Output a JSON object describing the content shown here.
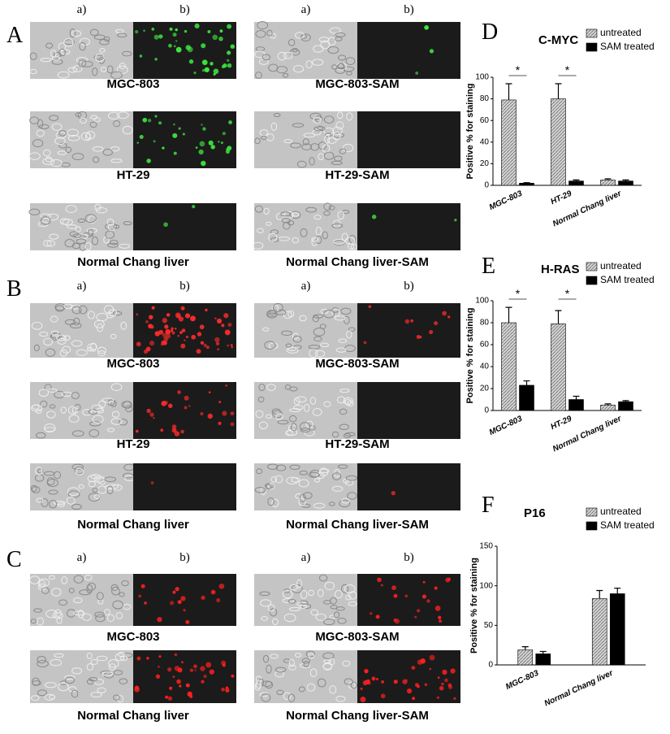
{
  "column_labels": [
    "a)",
    "b)"
  ],
  "panels": [
    {
      "label": "A",
      "rows": [
        {
          "left": "MGC-803",
          "right": "MGC-803-SAM"
        },
        {
          "left": "HT-29",
          "right": "HT-29-SAM"
        },
        {
          "left": "Normal Chang liver",
          "right": "Normal Chang liver-SAM"
        }
      ]
    },
    {
      "label": "B",
      "rows": [
        {
          "left": "MGC-803",
          "right": "MGC-803-SAM"
        },
        {
          "left": "HT-29",
          "right": "HT-29-SAM"
        },
        {
          "left": "Normal Chang liver",
          "right": "Normal Chang liver-SAM"
        }
      ]
    },
    {
      "label": "C",
      "rows": [
        {
          "left": "MGC-803",
          "right": "MGC-803-SAM"
        },
        {
          "left": "Normal Chang liver",
          "right": "Normal Chang liver-SAM"
        }
      ]
    }
  ],
  "chart_data": [
    {
      "type": "bar",
      "label": "D",
      "title": "C-MYC",
      "y_label": "Positive % for staining",
      "categories": [
        "MGC-803",
        "HT-29",
        "Normal Chang liver"
      ],
      "series": [
        {
          "name": "untreated",
          "color": "#d4d4d4",
          "pattern": "hatched",
          "values": [
            79,
            80,
            5
          ],
          "errors": [
            15,
            14,
            1
          ]
        },
        {
          "name": "SAM treated",
          "color": "#000000",
          "values": [
            2,
            4,
            4
          ],
          "errors": [
            0.5,
            1,
            1
          ]
        }
      ],
      "annotations": [
        "*",
        "*"
      ],
      "ylim": [
        0,
        100
      ],
      "yticks": [
        0,
        20,
        40,
        60,
        80,
        100
      ]
    },
    {
      "type": "bar",
      "label": "E",
      "title": "H-RAS",
      "y_label": "Positive % for staining",
      "categories": [
        "MGC-803",
        "HT-29",
        "Normal Chang liver"
      ],
      "series": [
        {
          "name": "untreated",
          "color": "#d4d4d4",
          "pattern": "hatched",
          "values": [
            80,
            79,
            5
          ],
          "errors": [
            14,
            12,
            1
          ]
        },
        {
          "name": "SAM treated",
          "color": "#000000",
          "values": [
            23,
            10,
            8
          ],
          "errors": [
            4,
            3,
            1
          ]
        }
      ],
      "annotations": [
        "*",
        "*"
      ],
      "ylim": [
        0,
        100
      ],
      "yticks": [
        0,
        20,
        40,
        60,
        80,
        100
      ]
    },
    {
      "type": "bar",
      "label": "F",
      "title": "P16",
      "y_label": "Positive % for staining",
      "categories": [
        "MGC-803",
        "Normal Chang liver"
      ],
      "series": [
        {
          "name": "untreated",
          "color": "#d4d4d4",
          "pattern": "hatched",
          "values": [
            19,
            84
          ],
          "errors": [
            4,
            10
          ]
        },
        {
          "name": "SAM treated",
          "color": "#000000",
          "values": [
            14,
            90
          ],
          "errors": [
            3,
            7
          ]
        }
      ],
      "annotations": [],
      "ylim": [
        0,
        150
      ],
      "yticks": [
        0,
        50,
        100,
        150
      ]
    }
  ]
}
